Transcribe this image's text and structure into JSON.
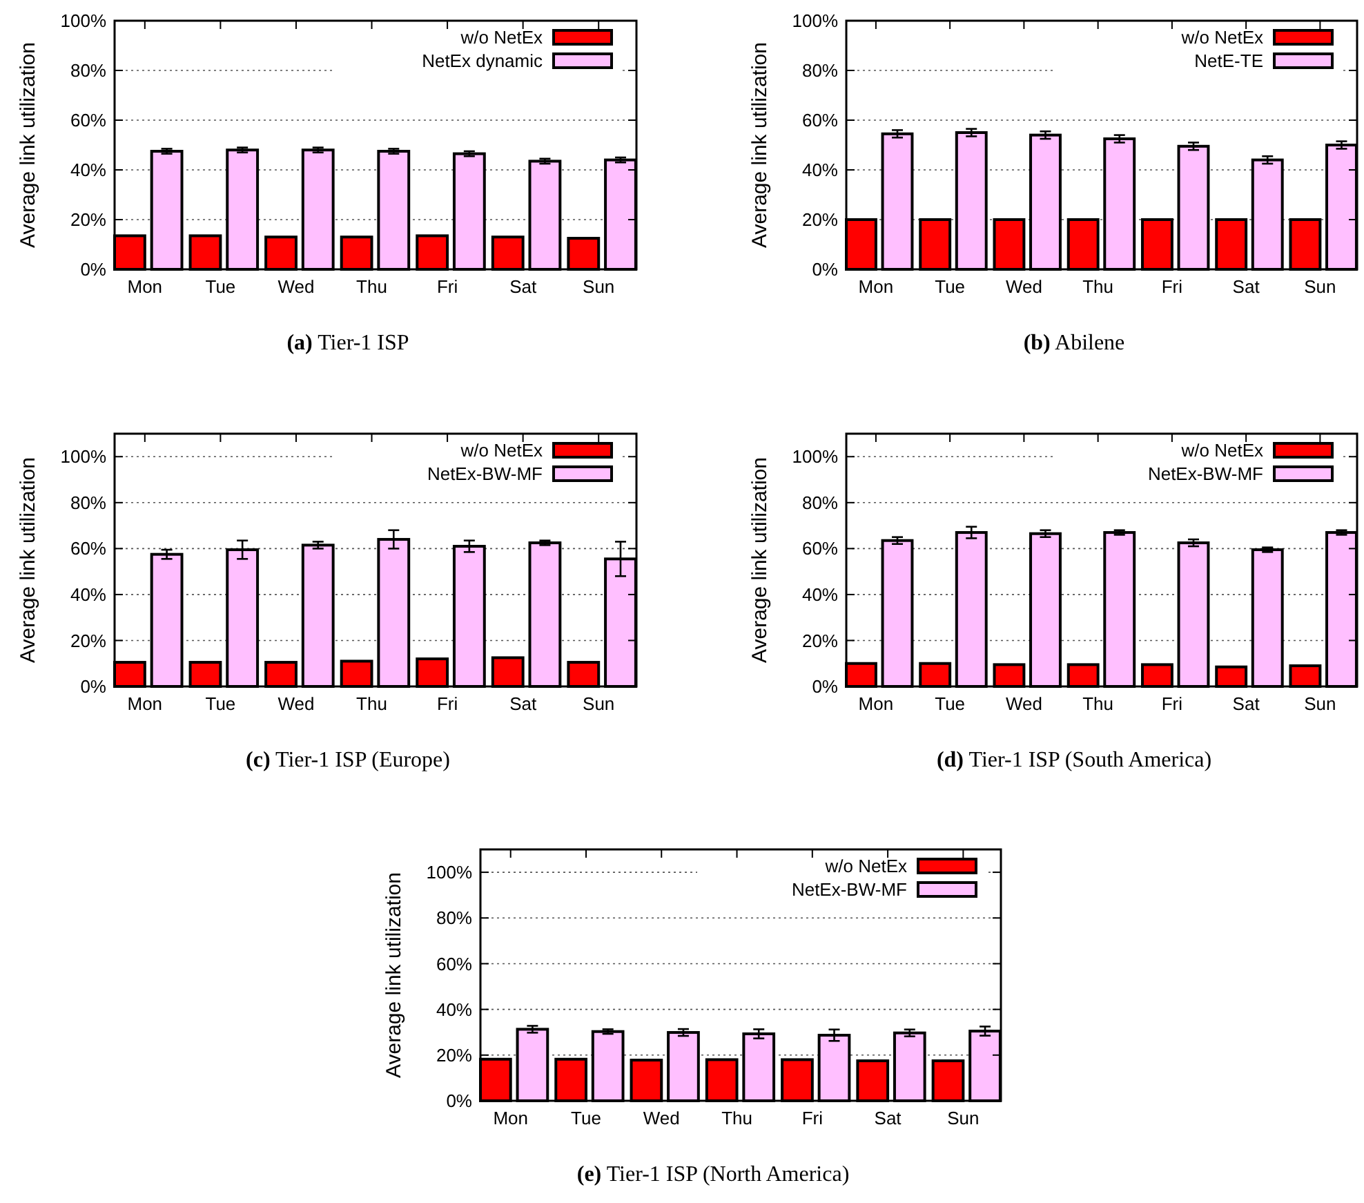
{
  "chart_data": [
    {
      "type": "bar",
      "title": "(a) Tier-1 ISP",
      "ylabel": "Average link utilization",
      "categories": [
        "Mon",
        "Tue",
        "Wed",
        "Thu",
        "Fri",
        "Sat",
        "Sun"
      ],
      "ylim": [
        0,
        100
      ],
      "yticks": [
        {
          "value": 0,
          "label": "0%"
        },
        {
          "value": 20,
          "label": "20%"
        },
        {
          "value": 40,
          "label": "40%"
        },
        {
          "value": 60,
          "label": "60%"
        },
        {
          "value": 80,
          "label": "80%"
        },
        {
          "value": 100,
          "label": "100%"
        }
      ],
      "grid": "y",
      "legend": "top right",
      "series": [
        {
          "name": "w/o NetEx",
          "color": "#ff0000",
          "values": [
            13.5,
            13.5,
            13,
            13,
            13.5,
            13,
            12.5
          ]
        },
        {
          "name": "NetEx dynamic",
          "color": "#ffbfff",
          "values": [
            47.5,
            48,
            48,
            47.5,
            46.5,
            43.5,
            44
          ],
          "errors": [
            1,
            1,
            1,
            1,
            1,
            1,
            1
          ]
        }
      ]
    },
    {
      "type": "bar",
      "title": "(b) Abilene",
      "ylabel": "Average link utilization",
      "categories": [
        "Mon",
        "Tue",
        "Wed",
        "Thu",
        "Fri",
        "Sat",
        "Sun"
      ],
      "ylim": [
        0,
        100
      ],
      "yticks": [
        {
          "value": 0,
          "label": "0%"
        },
        {
          "value": 20,
          "label": "20%"
        },
        {
          "value": 40,
          "label": "40%"
        },
        {
          "value": 60,
          "label": "60%"
        },
        {
          "value": 80,
          "label": "80%"
        },
        {
          "value": 100,
          "label": "100%"
        }
      ],
      "grid": "y",
      "legend": "top right",
      "series": [
        {
          "name": "w/o NetEx",
          "color": "#ff0000",
          "values": [
            20,
            20,
            20,
            20,
            20,
            20,
            20
          ]
        },
        {
          "name": "NetE-TE",
          "color": "#ffbfff",
          "values": [
            54.5,
            55,
            54,
            52.5,
            49.5,
            44,
            50
          ],
          "errors": [
            1.5,
            1.5,
            1.5,
            1.5,
            1.5,
            1.5,
            1.5
          ]
        }
      ]
    },
    {
      "type": "bar",
      "title": "(c) Tier-1 ISP (Europe)",
      "ylabel": "Average link utilization",
      "categories": [
        "Mon",
        "Tue",
        "Wed",
        "Thu",
        "Fri",
        "Sat",
        "Sun"
      ],
      "ylim": [
        0,
        110
      ],
      "yticks": [
        {
          "value": 0,
          "label": "0%"
        },
        {
          "value": 20,
          "label": "20%"
        },
        {
          "value": 40,
          "label": "40%"
        },
        {
          "value": 60,
          "label": "60%"
        },
        {
          "value": 80,
          "label": "80%"
        },
        {
          "value": 100,
          "label": "100%"
        }
      ],
      "grid": "y",
      "legend": "top right",
      "series": [
        {
          "name": "w/o NetEx",
          "color": "#ff0000",
          "values": [
            10.5,
            10.5,
            10.5,
            11,
            12,
            12.5,
            10.5
          ]
        },
        {
          "name": "NetEx-BW-MF",
          "color": "#ffbfff",
          "values": [
            57.5,
            59.5,
            61.5,
            64,
            61,
            62.5,
            55.5
          ],
          "errors": [
            2,
            4,
            1.5,
            4,
            2.5,
            1,
            7.5
          ]
        }
      ]
    },
    {
      "type": "bar",
      "title": "(d) Tier-1 ISP (South America)",
      "ylabel": "Average link utilization",
      "categories": [
        "Mon",
        "Tue",
        "Wed",
        "Thu",
        "Fri",
        "Sat",
        "Sun"
      ],
      "ylim": [
        0,
        110
      ],
      "yticks": [
        {
          "value": 0,
          "label": "0%"
        },
        {
          "value": 20,
          "label": "20%"
        },
        {
          "value": 40,
          "label": "40%"
        },
        {
          "value": 60,
          "label": "60%"
        },
        {
          "value": 80,
          "label": "80%"
        },
        {
          "value": 100,
          "label": "100%"
        }
      ],
      "grid": "y",
      "legend": "top right",
      "series": [
        {
          "name": "w/o NetEx",
          "color": "#ff0000",
          "values": [
            10,
            10,
            9.5,
            9.5,
            9.5,
            8.5,
            9
          ]
        },
        {
          "name": "NetEx-BW-MF",
          "color": "#ffbfff",
          "values": [
            63.5,
            67,
            66.5,
            67,
            62.5,
            59.5,
            67
          ],
          "errors": [
            1.5,
            2.5,
            1.5,
            1,
            1.5,
            1,
            1
          ]
        }
      ]
    },
    {
      "type": "bar",
      "title": "(e) Tier-1 ISP (North America)",
      "ylabel": "Average link utilization",
      "categories": [
        "Mon",
        "Tue",
        "Wed",
        "Thu",
        "Fri",
        "Sat",
        "Sun"
      ],
      "ylim": [
        0,
        110
      ],
      "yticks": [
        {
          "value": 0,
          "label": "0%"
        },
        {
          "value": 20,
          "label": "20%"
        },
        {
          "value": 40,
          "label": "40%"
        },
        {
          "value": 60,
          "label": "60%"
        },
        {
          "value": 80,
          "label": "80%"
        },
        {
          "value": 100,
          "label": "100%"
        }
      ],
      "grid": "y",
      "legend": "top right",
      "series": [
        {
          "name": "w/o NetEx",
          "color": "#ff0000",
          "values": [
            18.2,
            18.2,
            17.8,
            18,
            18,
            17.5,
            17.5
          ]
        },
        {
          "name": "NetEx-BW-MF",
          "color": "#ffbfff",
          "values": [
            31.3,
            30.3,
            29.9,
            29.3,
            28.7,
            29.7,
            30.5
          ],
          "errors": [
            1.5,
            1,
            1.5,
            2,
            2.5,
            1.5,
            2
          ]
        }
      ]
    }
  ]
}
